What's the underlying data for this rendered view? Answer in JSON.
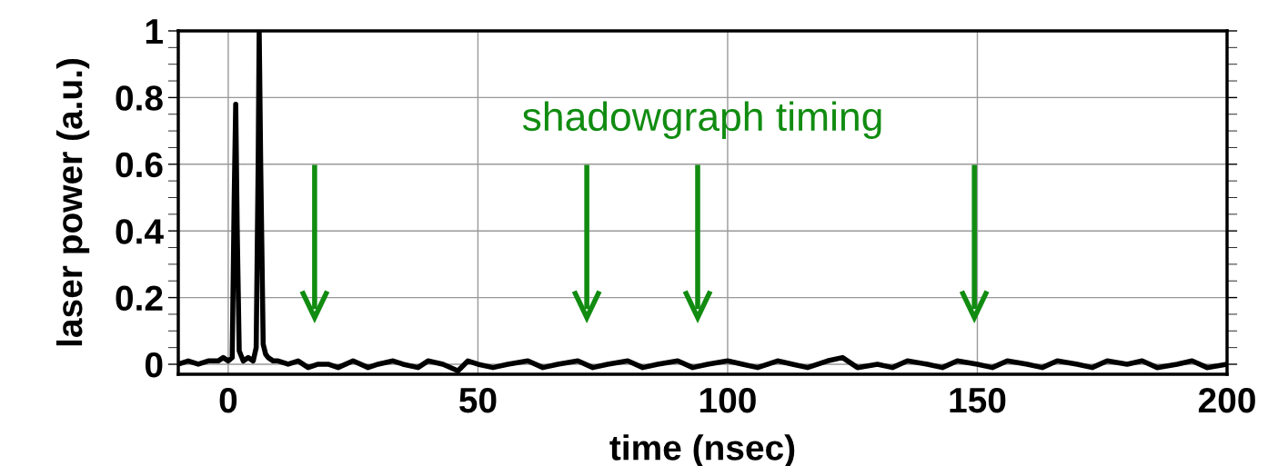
{
  "chart_data": {
    "type": "line",
    "xlabel": "time (nsec)",
    "ylabel": "laser power (a.u.)",
    "xlim": [
      -10,
      200
    ],
    "xticks": [
      0,
      50,
      100,
      150,
      200
    ],
    "ylim": [
      -0.03,
      1
    ],
    "yticks": [
      0,
      0.2,
      0.4,
      0.6,
      0.8,
      1
    ],
    "grid": true,
    "series": [
      {
        "color": "#000000",
        "x": [
          -10,
          -8,
          -6,
          -4,
          -2,
          -1,
          0,
          0.8,
          1.2,
          1.5,
          1.8,
          2.2,
          3,
          4,
          5,
          5.6,
          6.0,
          6.2,
          6.5,
          7.0,
          7.5,
          8,
          9,
          10,
          12,
          14,
          16,
          18,
          20,
          22,
          25,
          28,
          30,
          33,
          35,
          38,
          40,
          43,
          46,
          48,
          50,
          53,
          56,
          60,
          63,
          66,
          70,
          73,
          76,
          80,
          83,
          86,
          90,
          93,
          96,
          100,
          103,
          106,
          110,
          113,
          116,
          120,
          123,
          126,
          130,
          133,
          136,
          140,
          143,
          146,
          150,
          153,
          156,
          160,
          163,
          166,
          170,
          173,
          176,
          180,
          183,
          186,
          190,
          193,
          196,
          200
        ],
        "values": [
          0,
          0.01,
          0,
          0.01,
          0.01,
          0.02,
          0.01,
          0.02,
          0.5,
          0.78,
          0.4,
          0.04,
          0.01,
          0.02,
          0.01,
          0.05,
          0.6,
          1,
          0.6,
          0.06,
          0.03,
          0.02,
          0.01,
          0.01,
          0.0,
          0.01,
          -0.01,
          0,
          0.0,
          -0.01,
          0.01,
          -0.01,
          0,
          0.01,
          0,
          -0.01,
          0.01,
          0,
          -0.02,
          0.01,
          0,
          -0.01,
          0.0,
          0.01,
          -0.01,
          0,
          0.01,
          -0.01,
          0.0,
          0.01,
          -0.01,
          0,
          0.01,
          -0.01,
          0,
          0.01,
          0,
          -0.01,
          0.01,
          0.0,
          -0.01,
          0.01,
          0.02,
          -0.01,
          0,
          -0.01,
          0.01,
          0,
          -0.01,
          0.01,
          0.0,
          -0.01,
          0.01,
          0,
          -0.01,
          0.01,
          0,
          -0.01,
          0.01,
          0,
          0.01,
          -0.01,
          0,
          0.01,
          -0.01,
          0
        ]
      }
    ],
    "annotations": [
      "shadowgraph timing"
    ],
    "ref_lines": [
      {
        "axis": "x",
        "value": 17.3,
        "color": "#118c11"
      },
      {
        "axis": "x",
        "value": 71.8,
        "color": "#118c11"
      },
      {
        "axis": "x",
        "value": 94,
        "color": "#118c11"
      },
      {
        "axis": "x",
        "value": 149.4,
        "color": "#118c11"
      }
    ]
  }
}
